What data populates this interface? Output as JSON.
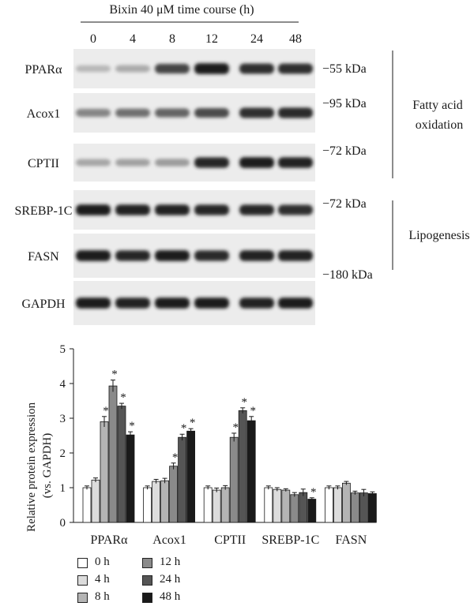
{
  "blot": {
    "header": "Bixin 40 μM time course (h)",
    "timepoints": [
      "0",
      "4",
      "8",
      "12",
      "24",
      "48"
    ],
    "rows": [
      {
        "label": "PPARα",
        "intensity": [
          0.22,
          0.28,
          0.75,
          0.95,
          0.85,
          0.85
        ]
      },
      {
        "label": "Acox1",
        "intensity": [
          0.45,
          0.55,
          0.6,
          0.72,
          0.85,
          0.88
        ]
      },
      {
        "label": "CPTII",
        "intensity": [
          0.3,
          0.32,
          0.35,
          0.9,
          0.95,
          0.92
        ]
      },
      {
        "label": "SREBP-1C",
        "intensity": [
          0.95,
          0.92,
          0.92,
          0.9,
          0.9,
          0.85
        ]
      },
      {
        "label": "FASN",
        "intensity": [
          0.95,
          0.9,
          0.95,
          0.88,
          0.92,
          0.92
        ]
      },
      {
        "label": "GAPDH",
        "intensity": [
          0.95,
          0.92,
          0.95,
          0.95,
          0.92,
          0.95
        ]
      }
    ],
    "markers": [
      "−55 kDa",
      "−95 kDa",
      "−72 kDa",
      "−72 kDa",
      "−180 kDa"
    ],
    "groups": [
      "Fatty acid\noxidation",
      "Lipogenesis"
    ]
  },
  "chart_data": {
    "type": "bar",
    "ylabel": "Relative protein expression\n(vs. GAPDH)",
    "ylim": [
      0,
      5
    ],
    "yticks": [
      "0",
      "1",
      "2",
      "3",
      "4",
      "5"
    ],
    "categories": [
      "PPARα",
      "Acox1",
      "CPTII",
      "SREBP-1C",
      "FASN"
    ],
    "series": [
      {
        "name": "0 h",
        "color": "#ffffff",
        "values": [
          1.0,
          1.0,
          1.0,
          1.0,
          1.0
        ],
        "errors": [
          0.05,
          0.05,
          0.05,
          0.05,
          0.05
        ],
        "significant": [
          false,
          false,
          false,
          false,
          false
        ]
      },
      {
        "name": "4 h",
        "color": "#dcdcdc",
        "values": [
          1.22,
          1.18,
          0.93,
          0.95,
          1.0
        ],
        "errors": [
          0.06,
          0.06,
          0.06,
          0.05,
          0.05
        ],
        "significant": [
          false,
          false,
          false,
          false,
          false
        ]
      },
      {
        "name": "8 h",
        "color": "#b4b4b4",
        "values": [
          2.9,
          1.2,
          1.0,
          0.93,
          1.13
        ],
        "errors": [
          0.15,
          0.07,
          0.06,
          0.04,
          0.05
        ],
        "significant": [
          true,
          false,
          false,
          false,
          false
        ]
      },
      {
        "name": "12 h",
        "color": "#8a8a8a",
        "values": [
          3.93,
          1.62,
          2.45,
          0.8,
          0.85
        ],
        "errors": [
          0.17,
          0.09,
          0.12,
          0.06,
          0.05
        ],
        "significant": [
          true,
          true,
          true,
          false,
          false
        ]
      },
      {
        "name": "24 h",
        "color": "#555555",
        "values": [
          3.35,
          2.45,
          3.22,
          0.86,
          0.85
        ],
        "errors": [
          0.08,
          0.09,
          0.08,
          0.1,
          0.1
        ],
        "significant": [
          true,
          true,
          true,
          false,
          false
        ]
      },
      {
        "name": "48 h",
        "color": "#1a1a1a",
        "values": [
          2.52,
          2.63,
          2.93,
          0.67,
          0.83
        ],
        "errors": [
          0.09,
          0.07,
          0.12,
          0.04,
          0.05
        ],
        "significant": [
          true,
          true,
          true,
          true,
          false
        ]
      }
    ],
    "significance_marker": "*",
    "grid": false,
    "legend_position": "bottom-left"
  }
}
